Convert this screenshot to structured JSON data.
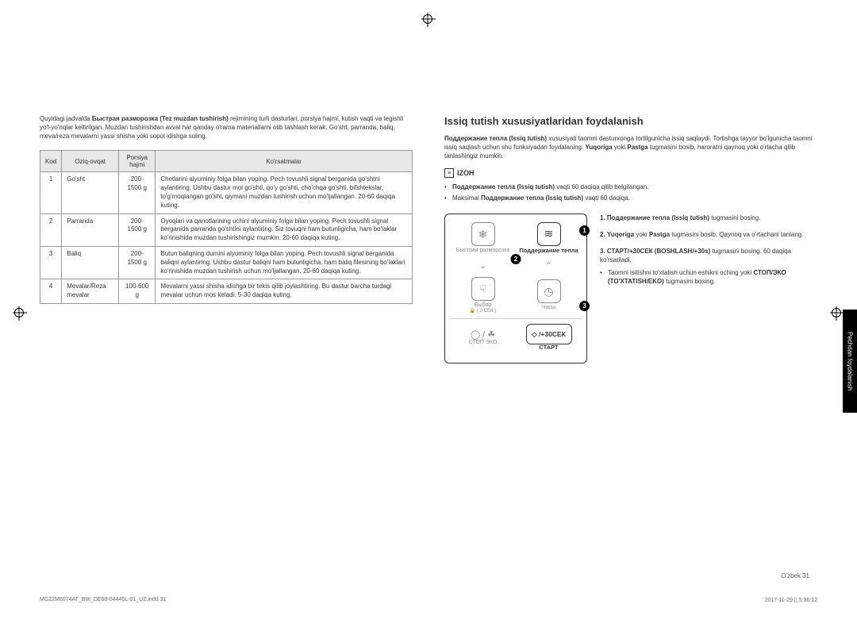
{
  "left": {
    "intro_parts": [
      "Quyidagi jadvalda ",
      "Быстрая разморозка (Tez muzdan tushirish)",
      " rejimining turli dasturlari, porsiya hajmi, kutish vaqti va tegishli yo'l-yo'riqlar keltirilgan. Muzdan tushirishdan avval har qanday o'rama materiallarni olib tashlash kerak. Go'sht, parranda, baliq, meva/reza mevalarni yassi shisha yoki sopol idishga soling."
    ],
    "headers": [
      "Kod",
      "Oziq-ovqat",
      "Porsiya hajmi",
      "Ko'rsatmalar"
    ],
    "rows": [
      {
        "kod": "1",
        "name": "Go'sht",
        "portion": "200-1500 g",
        "instr": "Chetlarini alyuminiy folga bilan yoping. Pech tovushli signal berganida go'shtni aylantiring. Ushbu dastur mol go'shti, qo'y go'shti, cho'chqa go'shti, bifshtekslar, to'g'moqlangan go'sht, qiymani muzdan tushirish uchun mo'ljallangan. 20-60 daqiqa kuting."
      },
      {
        "kod": "2",
        "name": "Parranda",
        "portion": "200-1500 g",
        "instr": "Oyoqlari va qanotlarining uchini alyuminiy folga bilan yoping. Pech tovushli signal berganida parranda go'shtini aylantiring. Siz tovuqni ham butunligicha, ham bo'laklar ko'rinishida muzdan tushirishingiz mumkin. 20-60 daqiqa kuting."
      },
      {
        "kod": "3",
        "name": "Baliq",
        "portion": "200-1500 g",
        "instr": "Butun baliqning dumini alyuminiy folga bilan yoping. Pech tovushli signal berganida baliqni aylantiring. Ushbu dastur baliqni ham butunligicha, ham baliq filesining bo'laklari ko'rinishida muzdan tushirish uchun mo'ljallangan. 20-60 daqiqa kuting."
      },
      {
        "kod": "4",
        "name": "Mevalar/Reza mevalar",
        "portion": "100-600 g",
        "instr": "Mevalarni yassi shisha idishga bir tekis qilib joylashtiring. Bu dastur barcha turdagi mevalar uchun mos keladi. 5-30 daqiqa kuting."
      }
    ]
  },
  "right": {
    "heading": "Issiq tutish xususiyatlaridan foydalanish",
    "para_parts": [
      "Поддержание тепла (Issiq tutish)",
      " xususiyati taomni dasturxonga tortilgunicha issiq saqlaydi. Tortishga tayyor bo'lgunicha taomni issiq saqlash uchun shu funksiyadan foydalaning. ",
      "Yuqoriga",
      " yoki ",
      "Pastga",
      " tugmasini bosib, haroratni qaynoq yoki o'rtacha qilib tanlashingiz mumkin."
    ],
    "izoh_label": "IZOH",
    "bullets": [
      {
        "b": "Поддержание тепла (Issiq tutish)",
        "t": " vaqti 60 daqiqa qilib belgilangan."
      },
      {
        "pre": "Maksimal ",
        "b": "Поддержание тепла (Issiq tutish)",
        "t": " vaqti 60 daqiqa."
      }
    ],
    "steps": [
      {
        "n": "1.",
        "parts": [
          {
            "b": "Поддержание тепла (Issiq tutish)"
          },
          {
            "t": " tugmasini bosing."
          }
        ]
      },
      {
        "n": "2.",
        "parts": [
          {
            "b": "Yuqoriga"
          },
          {
            "t": " yoki "
          },
          {
            "b": "Pastga"
          },
          {
            "t": " tugmasini bosib, Qaynoq va o'rtachani tanlang."
          }
        ]
      },
      {
        "n": "3.",
        "parts": [
          {
            "b": "СТАРТ/+30СЕК (BOSHLASH/+30s)"
          },
          {
            "t": " tugmasini bosing. 60 daqiqa ko'rsatiladi."
          }
        ],
        "sub": {
          "t1": "Taomni isitishni to'xtatish uchun eshikni oching yoki ",
          "b": "СТОП/ЭКО (TO'XTATISH/EKO)",
          "t2": " tugmasini bosing."
        }
      }
    ],
    "panel": {
      "row1": [
        {
          "icon": "❄",
          "label": "Быстрая разморозка",
          "dark": false
        },
        {
          "icon": "≋",
          "label": "Поддержание тепла",
          "dark": true,
          "marker": "1"
        }
      ],
      "row_mid_marker": "2",
      "row2": [
        {
          "icon": "☟",
          "label": "Выбор",
          "sublabel": "🔒 ( 3 СЕК )",
          "dark": false
        },
        {
          "icon": "◷",
          "label": "Часы",
          "dark": false,
          "marker": "3"
        }
      ],
      "row3": [
        {
          "icon": "◯ / ☘",
          "label": "СТОП  ЭКО",
          "dark": false
        },
        {
          "boxtext": "◇ /+30СЕК",
          "label": "СТАРТ",
          "dark": true
        }
      ]
    },
    "side_tab": "Pechdan foydalanish"
  },
  "footer": {
    "left": "MG22M8074AT_BW_DE68-04445L-01_UZ.indd   31",
    "right": "2017-11-29   ▯ 5:36:12",
    "page": "O'zbek   31"
  }
}
